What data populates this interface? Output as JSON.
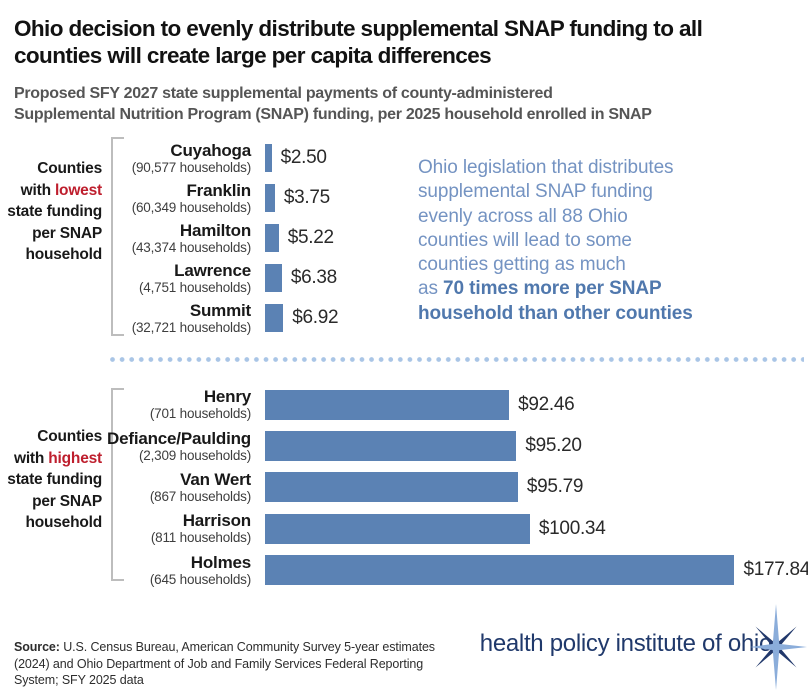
{
  "header": {
    "title_line1": "Ohio decision to evenly distribute supplemental SNAP funding to all",
    "title_line2": "counties will create large per capita differences",
    "subtitle_line1": "Proposed SFY 2027 state supplemental payments of county-administered",
    "subtitle_line2": "Supplemental Nutrition Program (SNAP) funding, per 2025 household enrolled in SNAP"
  },
  "annotation": {
    "lines": [
      {
        "text": "Ohio legislation that distributes"
      },
      {
        "text": "supplemental SNAP funding"
      },
      {
        "text": "evenly across all 88 Ohio"
      },
      {
        "text": "counties will lead to some"
      },
      {
        "text": "counties getting as much"
      },
      {
        "text": "as ",
        "bold": "70 times more per SNAP"
      },
      {
        "text": "",
        "bold": "household than other counties"
      }
    ]
  },
  "chart_data": [
    {
      "type": "bar",
      "orientation": "horizontal",
      "side_label_lines": [
        "Counties",
        "with lowest",
        "state funding",
        "per SNAP",
        "household"
      ],
      "highlight_word": "lowest",
      "categories": [
        "Cuyahoga",
        "Franklin",
        "Hamilton",
        "Lawrence",
        "Summit"
      ],
      "households": [
        "(90,577 households)",
        "(60,349 households)",
        "(43,374 households)",
        "(4,751 households)",
        "(32,721 households)"
      ],
      "values": [
        2.5,
        3.75,
        5.22,
        6.38,
        6.92
      ],
      "value_labels": [
        "$2.50",
        "$3.75",
        "$5.22",
        "$6.38",
        "$6.92"
      ],
      "xlim": [
        0,
        190
      ]
    },
    {
      "type": "bar",
      "orientation": "horizontal",
      "side_label_lines": [
        "Counties",
        "with highest",
        "state funding",
        "per SNAP",
        "household"
      ],
      "highlight_word": "highest",
      "categories": [
        "Henry",
        "Defiance/Paulding",
        "Van Wert",
        "Harrison",
        "Holmes"
      ],
      "households": [
        "(701 households)",
        "(2,309 households)",
        "(867 households)",
        "(811 households)",
        "(645 households)"
      ],
      "values": [
        92.46,
        95.2,
        95.79,
        100.34,
        177.84
      ],
      "value_labels": [
        "$92.46",
        "$95.20",
        "$95.79",
        "$100.34",
        "$177.84"
      ],
      "xlim": [
        0,
        190
      ]
    }
  ],
  "footer": {
    "source_label": "Source:",
    "source_lines": [
      "U.S. Census Bureau, American Community Survey 5-year estimates",
      "(2024) and Ohio Department of Job and Family Services Federal Reporting",
      "System; SFY 2025 data"
    ],
    "logo_text": "health policy institute of ohio"
  },
  "colors": {
    "bar": "#5b82b4",
    "highlight": "#be1e2d",
    "annotation": "#7493c2",
    "annotation_bold": "#5078ad",
    "divider_dots": "#a9c5e6",
    "bracket": "#bdbdbd",
    "logo_navy": "#20396b"
  }
}
